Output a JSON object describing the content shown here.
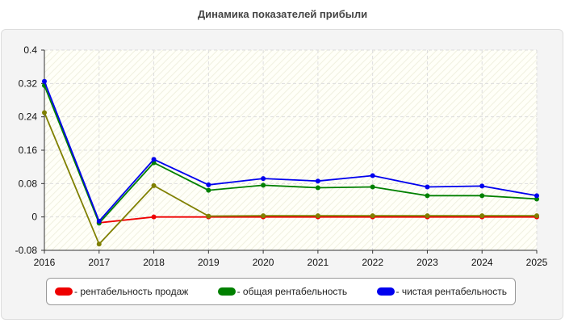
{
  "chart_data": {
    "type": "line",
    "title": "Динамика показателей прибыли",
    "xlabel": "",
    "ylabel": "",
    "x": [
      "2016",
      "2017",
      "2018",
      "2019",
      "2020",
      "2021",
      "2022",
      "2023",
      "2024",
      "2025"
    ],
    "ylim": [
      -0.08,
      0.4
    ],
    "yticks": [
      "-0.08",
      "0",
      "0.08",
      "0.16",
      "0.24",
      "0.32",
      "0.4"
    ],
    "grid": true,
    "legend_position": "bottom",
    "series": [
      {
        "name": "- рентабельность продаж",
        "color": "#ee0000",
        "values": [
          null,
          -0.014,
          0.0,
          0.0,
          0.0,
          0.0,
          0.0,
          0.0,
          0.0,
          0.0
        ]
      },
      {
        "name": "",
        "color": "#808000",
        "values": [
          0.25,
          -0.065,
          0.075,
          0.002,
          0.003,
          0.003,
          0.003,
          0.003,
          0.003,
          0.003
        ]
      },
      {
        "name": "- общая рентабельность",
        "color": "#008000",
        "values": [
          0.315,
          -0.015,
          0.13,
          0.064,
          0.076,
          0.07,
          0.072,
          0.051,
          0.051,
          0.043
        ]
      },
      {
        "name": "- чистая рентабельность",
        "color": "#0000ee",
        "values": [
          0.325,
          -0.01,
          0.138,
          0.077,
          0.092,
          0.086,
          0.099,
          0.072,
          0.074,
          0.051
        ]
      }
    ]
  }
}
